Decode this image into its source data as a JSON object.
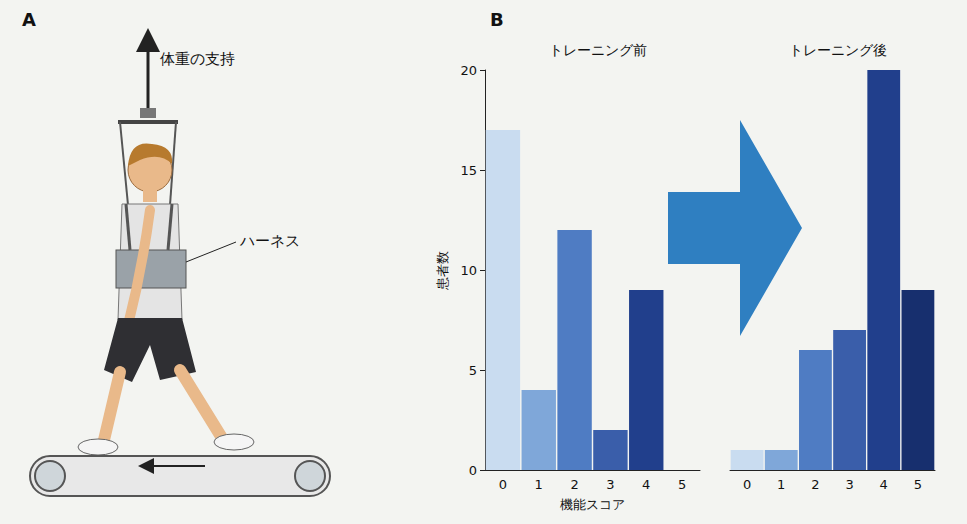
{
  "panel_a": {
    "panel_label": "A",
    "labels": {
      "support": "体重の支持",
      "harness": "ハーネス"
    }
  },
  "chart_data": {
    "type": "bar",
    "panel_label": "B",
    "y_label": "患者数",
    "x_label": "機能スコア",
    "categories": [
      "0",
      "1",
      "2",
      "3",
      "4",
      "5"
    ],
    "ylim": [
      0,
      20
    ],
    "yticks": [
      0,
      5,
      10,
      15,
      20
    ],
    "grid": false,
    "series": [
      {
        "name": "トレーニング前",
        "values": [
          17,
          4,
          12,
          2,
          9,
          0
        ],
        "colors": [
          "#c9dcf0",
          "#7fa7d9",
          "#4f7cc3",
          "#3a5eaa",
          "#213f8c",
          "#172f6e"
        ]
      },
      {
        "name": "トレーニング後",
        "values": [
          1,
          1,
          6,
          7,
          20,
          9
        ],
        "colors": [
          "#c9dcf0",
          "#7fa7d9",
          "#4f7cc3",
          "#3a5eaa",
          "#213f8c",
          "#172f6e"
        ]
      }
    ]
  }
}
